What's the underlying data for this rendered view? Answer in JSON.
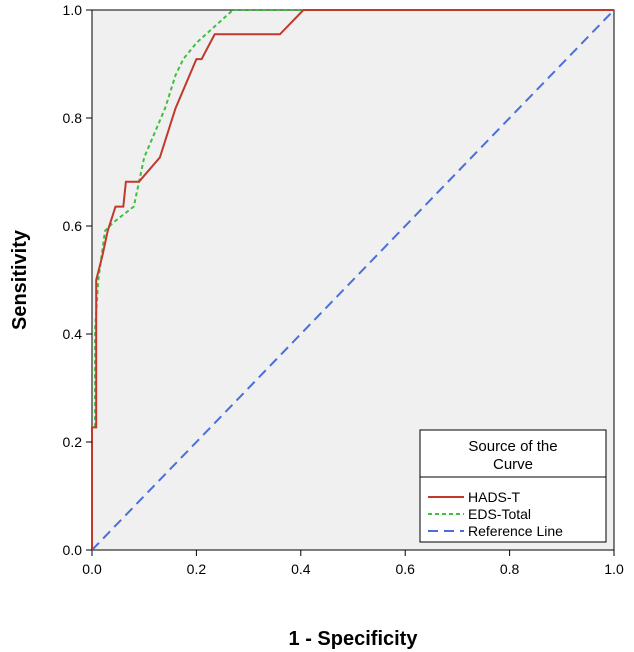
{
  "chart_data": {
    "type": "line",
    "title": "",
    "xlabel": "1 - Specificity",
    "ylabel": "Sensitivity",
    "xlim": [
      0,
      1
    ],
    "ylim": [
      0,
      1
    ],
    "x_ticks": [
      "0.0",
      "0.2",
      "0.4",
      "0.6",
      "0.8",
      "1.0"
    ],
    "y_ticks": [
      "0.0",
      "0.2",
      "0.4",
      "0.6",
      "0.8",
      "1.0"
    ],
    "grid": false,
    "plot_background": "#f0f0f0",
    "legend": {
      "title_lines": [
        "Source of the",
        "Curve"
      ],
      "placement": "bottom-right"
    },
    "series": [
      {
        "name": "HADS-T",
        "color": "#c0392b",
        "style": "solid",
        "points": [
          [
            0,
            0
          ],
          [
            0,
            0.227
          ],
          [
            0.008,
            0.227
          ],
          [
            0.008,
            0.5
          ],
          [
            0.02,
            0.545
          ],
          [
            0.03,
            0.591
          ],
          [
            0.045,
            0.636
          ],
          [
            0.06,
            0.636
          ],
          [
            0.065,
            0.682
          ],
          [
            0.09,
            0.682
          ],
          [
            0.13,
            0.727
          ],
          [
            0.16,
            0.818
          ],
          [
            0.2,
            0.909
          ],
          [
            0.21,
            0.909
          ],
          [
            0.235,
            0.955
          ],
          [
            0.36,
            0.955
          ],
          [
            0.405,
            1.0
          ],
          [
            1.0,
            1.0
          ]
        ]
      },
      {
        "name": "EDS-Total",
        "color": "#3fbf3f",
        "style": "dotted",
        "points": [
          [
            0,
            0
          ],
          [
            0,
            0.227
          ],
          [
            0.006,
            0.227
          ],
          [
            0.006,
            0.409
          ],
          [
            0.012,
            0.5
          ],
          [
            0.025,
            0.591
          ],
          [
            0.04,
            0.606
          ],
          [
            0.08,
            0.636
          ],
          [
            0.1,
            0.727
          ],
          [
            0.14,
            0.818
          ],
          [
            0.16,
            0.879
          ],
          [
            0.175,
            0.909
          ],
          [
            0.2,
            0.939
          ],
          [
            0.27,
            1.0
          ],
          [
            1.0,
            1.0
          ]
        ]
      },
      {
        "name": "Reference Line",
        "color": "#4a6fd8",
        "style": "dashed",
        "points": [
          [
            0,
            0
          ],
          [
            1,
            1
          ]
        ]
      }
    ]
  }
}
